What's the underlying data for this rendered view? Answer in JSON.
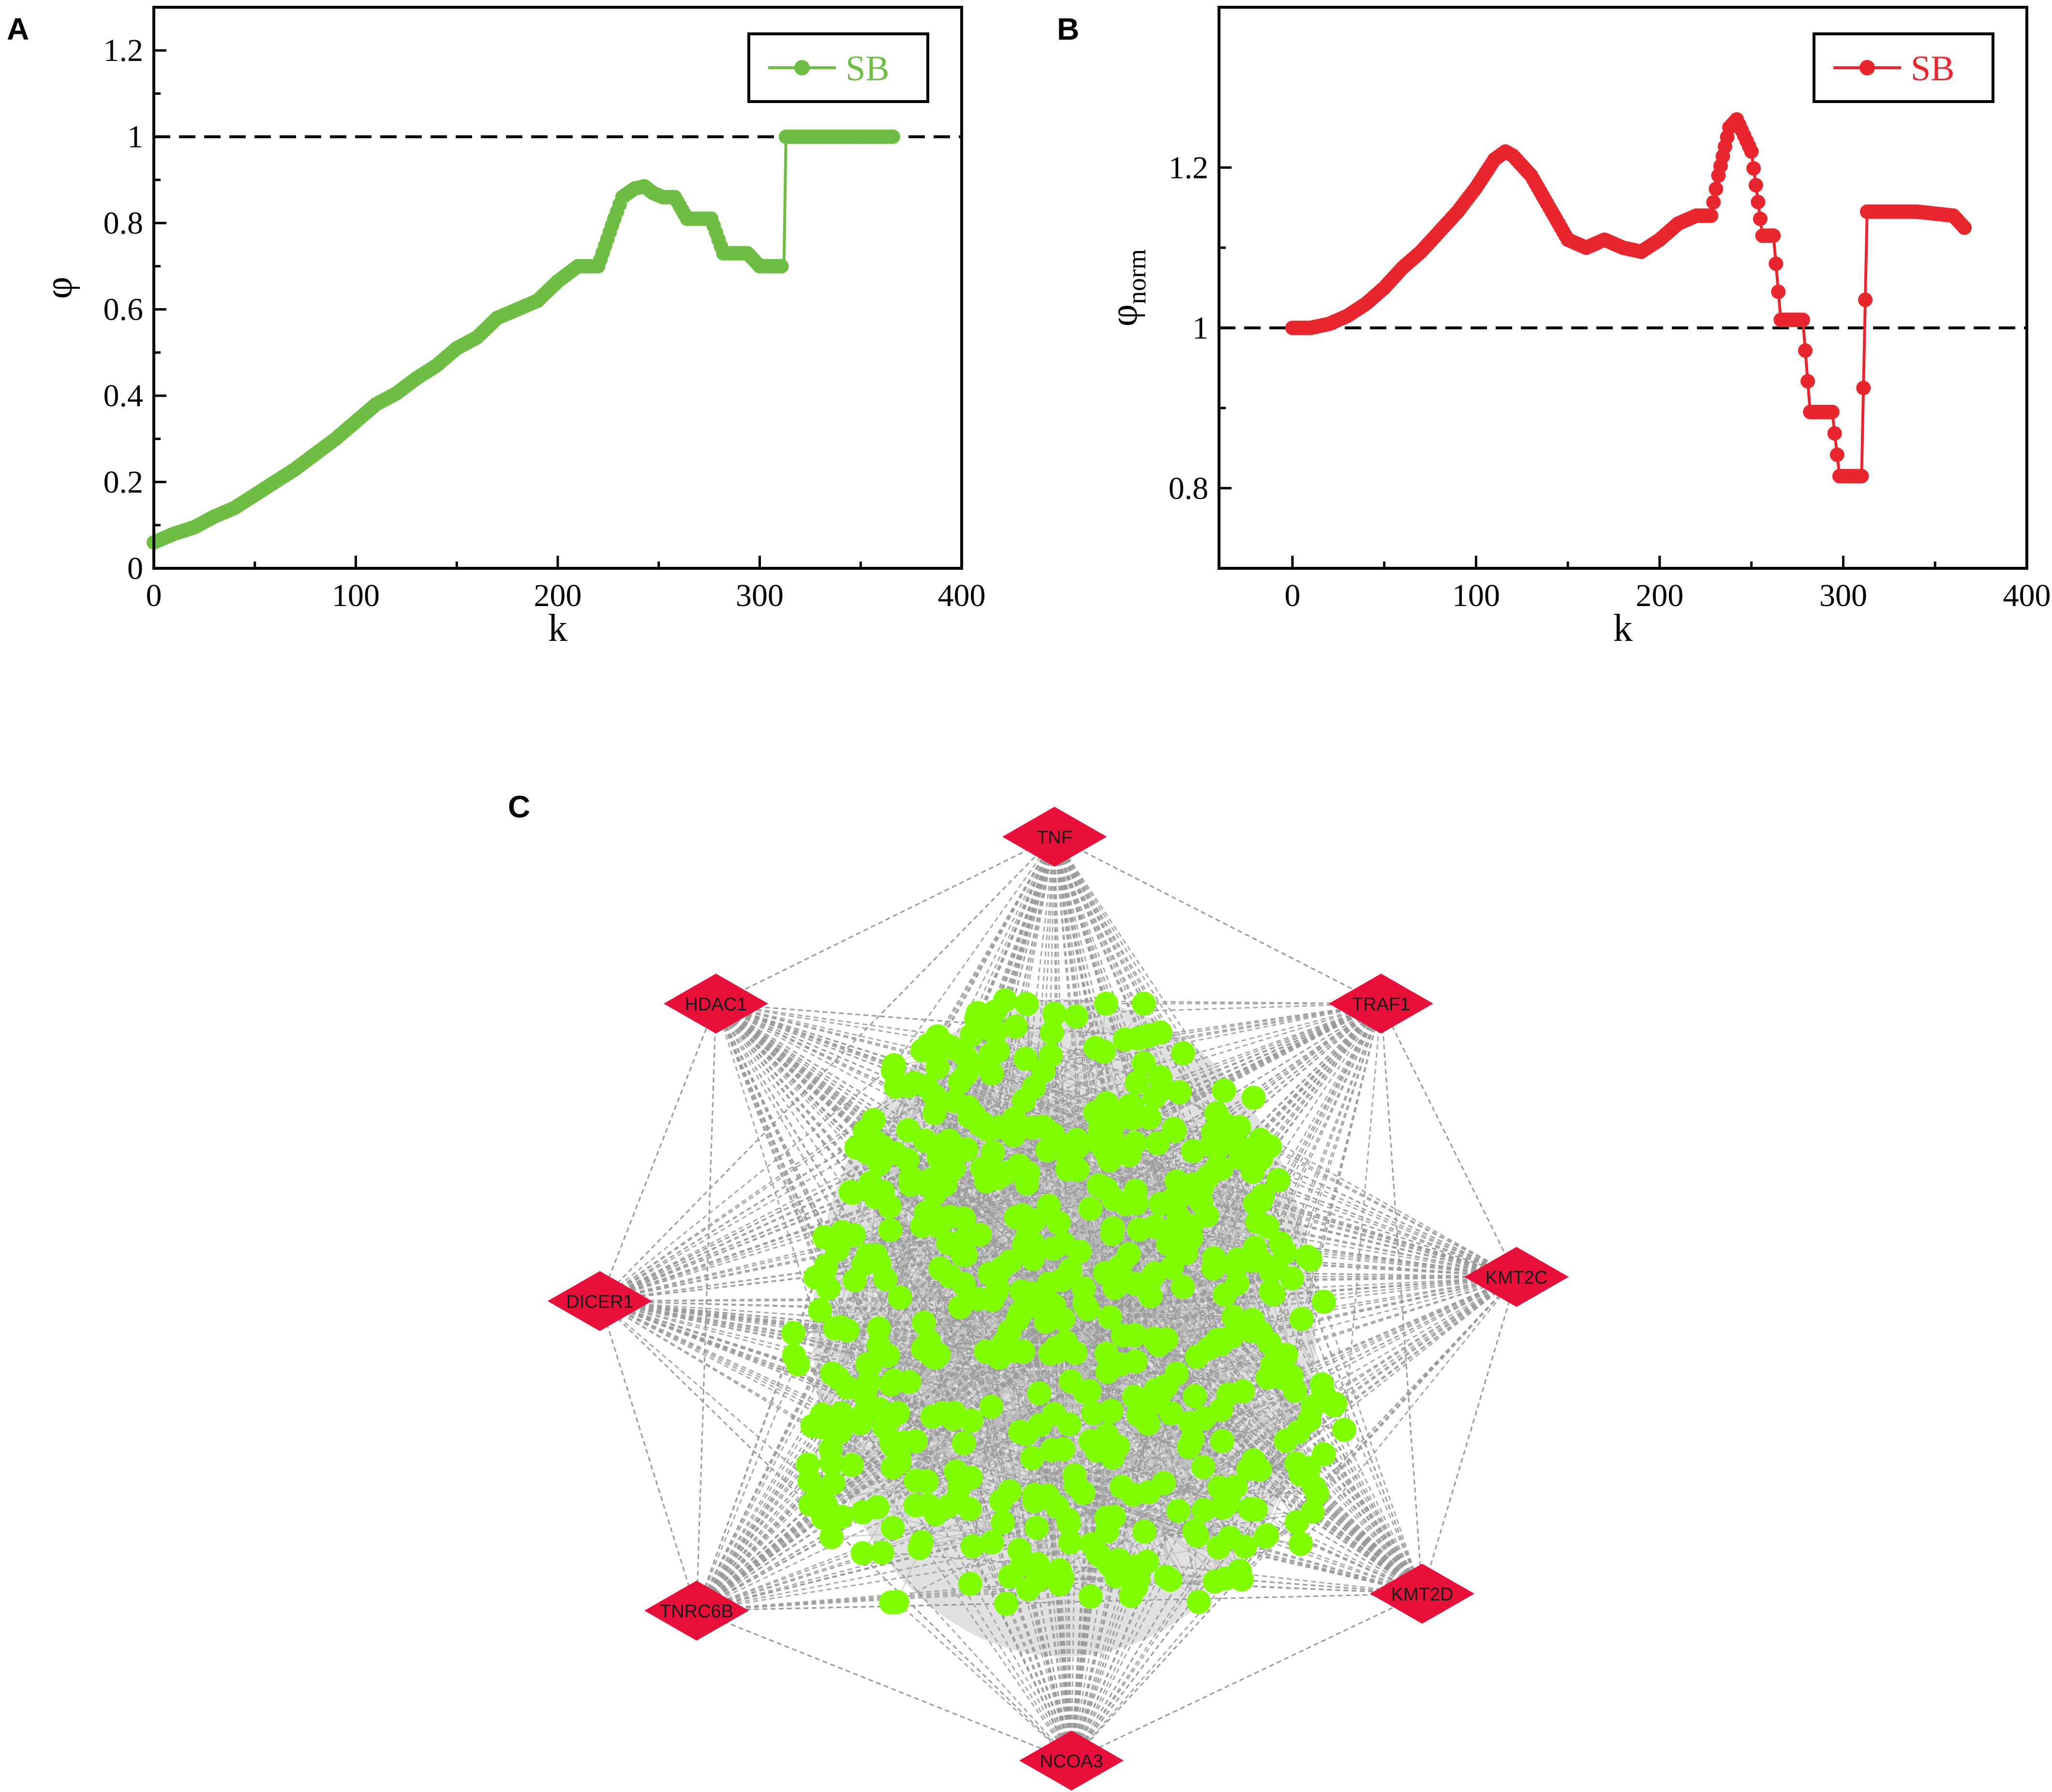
{
  "panels": {
    "a": "A",
    "b": "B",
    "c": "C"
  },
  "chart_data": [
    {
      "id": "A",
      "type": "line",
      "xlabel": "k",
      "ylabel": "φ",
      "ylabel_sub": "",
      "xlim": [
        0,
        400
      ],
      "ylim": [
        0,
        1.3
      ],
      "xticks": [
        0,
        100,
        200,
        300,
        400
      ],
      "xtick_labels": [
        "0",
        "100",
        "200",
        "300",
        "400"
      ],
      "yticks": [
        0,
        0.2,
        0.4,
        0.6,
        0.8,
        1,
        1.2
      ],
      "ytick_labels": [
        "0",
        "0.2",
        "0.4",
        "0.6",
        "0.8",
        "1",
        "1.2"
      ],
      "reference_line": 1,
      "legend": "top-right",
      "grid": false,
      "color": "#6fbe44",
      "series": [
        {
          "name": "SB",
          "x": [
            0,
            10,
            20,
            30,
            40,
            50,
            60,
            70,
            80,
            90,
            100,
            110,
            120,
            130,
            140,
            150,
            160,
            170,
            180,
            190,
            200,
            210,
            220,
            228,
            232,
            238,
            243,
            247,
            252,
            258,
            264,
            270,
            276,
            282,
            288,
            294,
            300,
            306,
            312,
            313,
            318,
            330,
            345,
            366
          ],
          "values": [
            0.06,
            0.08,
            0.095,
            0.12,
            0.14,
            0.17,
            0.2,
            0.23,
            0.265,
            0.3,
            0.34,
            0.38,
            0.405,
            0.44,
            0.47,
            0.51,
            0.535,
            0.58,
            0.6,
            0.62,
            0.665,
            0.7,
            0.7,
            0.81,
            0.86,
            0.88,
            0.885,
            0.87,
            0.86,
            0.86,
            0.81,
            0.81,
            0.81,
            0.73,
            0.73,
            0.73,
            0.7,
            0.7,
            0.7,
            1.0,
            1.0,
            1.0,
            1.0,
            1.0
          ]
        }
      ]
    },
    {
      "id": "B",
      "type": "line",
      "xlabel": "k",
      "ylabel": "φ",
      "ylabel_sub": "norm",
      "xlim": [
        -40,
        400
      ],
      "ylim": [
        0.7,
        1.4
      ],
      "xticks": [
        0,
        100,
        200,
        300,
        400
      ],
      "xtick_labels": [
        "0",
        "100",
        "200",
        "300",
        "400"
      ],
      "yticks": [
        0.8,
        1,
        1.2
      ],
      "ytick_labels": [
        "0.8",
        "1",
        "1.2"
      ],
      "reference_line": 1,
      "legend": "top-right",
      "grid": false,
      "color": "#e8262e",
      "series": [
        {
          "name": "SB",
          "x": [
            0,
            10,
            20,
            30,
            40,
            50,
            60,
            70,
            80,
            90,
            100,
            110,
            116,
            120,
            130,
            140,
            150,
            160,
            170,
            180,
            190,
            200,
            210,
            220,
            228,
            232,
            238,
            242,
            246,
            250,
            256,
            262,
            266,
            272,
            278,
            282,
            288,
            294,
            298,
            304,
            310,
            313,
            320,
            340,
            360,
            366
          ],
          "values": [
            1.0,
            1.0,
            1.005,
            1.015,
            1.03,
            1.05,
            1.075,
            1.095,
            1.12,
            1.145,
            1.175,
            1.21,
            1.22,
            1.215,
            1.19,
            1.15,
            1.11,
            1.1,
            1.11,
            1.1,
            1.095,
            1.11,
            1.13,
            1.14,
            1.14,
            1.19,
            1.25,
            1.26,
            1.24,
            1.22,
            1.115,
            1.115,
            1.01,
            1.01,
            1.01,
            0.895,
            0.895,
            0.895,
            0.815,
            0.815,
            0.815,
            1.145,
            1.145,
            1.145,
            1.14,
            1.125
          ]
        }
      ]
    }
  ],
  "network": {
    "hubs": [
      {
        "id": "tnf",
        "label": "TNF"
      },
      {
        "id": "traf1",
        "label": "TRAF1"
      },
      {
        "id": "kmt2c",
        "label": "KMT2C"
      },
      {
        "id": "kmt2d",
        "label": "KMT2D"
      },
      {
        "id": "ncoa3",
        "label": "NCOA3"
      },
      {
        "id": "tnrc6b",
        "label": "TNRC6B"
      },
      {
        "id": "dicer1",
        "label": "DICER1"
      },
      {
        "id": "hdac1",
        "label": "HDAC1"
      }
    ],
    "hub_color": "#e8103a",
    "node_color": "#7fff00",
    "edge_color": "#9a9a9a"
  }
}
